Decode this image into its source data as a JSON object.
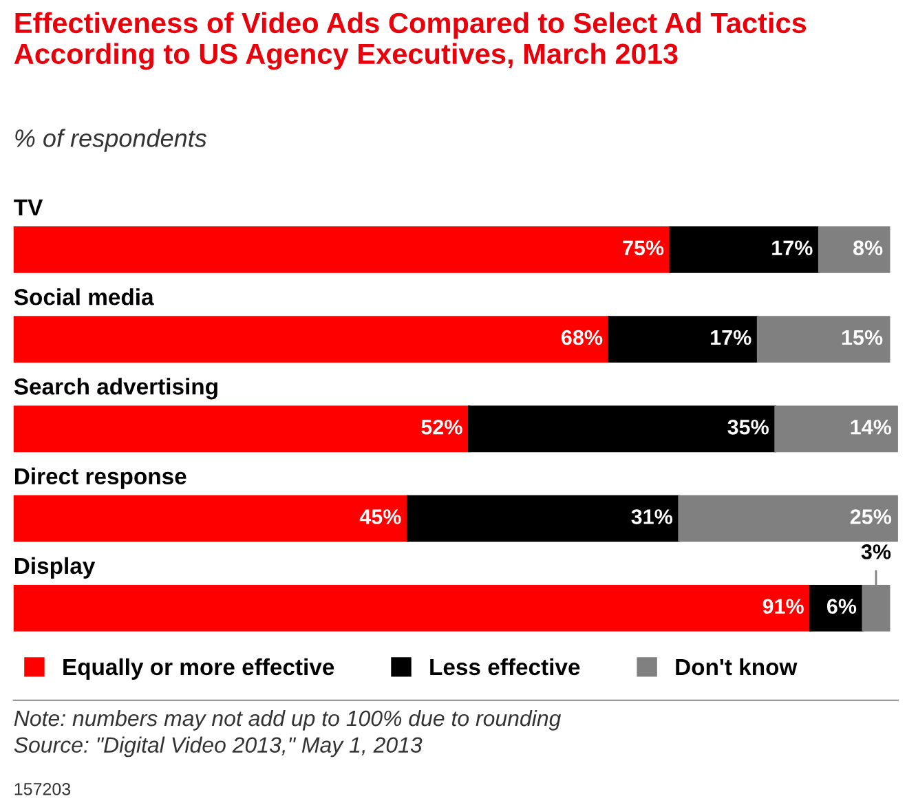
{
  "chart_data": {
    "type": "bar",
    "orientation": "horizontal",
    "stacked": true,
    "title": "Effectiveness of Video Ads Compared to Select Ad Tactics According to US Agency Executives, March 2013",
    "subtitle": "% of respondents",
    "categories": [
      "TV",
      "Social media",
      "Search advertising",
      "Direct response",
      "Display"
    ],
    "series": [
      {
        "name": "Equally or more effective",
        "color": "#ff0000",
        "values": [
          75,
          68,
          52,
          45,
          91
        ],
        "value_labels": [
          "75%",
          "68%",
          "52%",
          "45%",
          "91%"
        ]
      },
      {
        "name": "Less effective",
        "color": "#000000",
        "values": [
          17,
          17,
          35,
          31,
          6
        ],
        "value_labels": [
          "17%",
          "17%",
          "35%",
          "31%",
          "6%"
        ]
      },
      {
        "name": "Don't know",
        "color": "#808080",
        "values": [
          8,
          15,
          14,
          25,
          3
        ],
        "value_labels": [
          "8%",
          "15%",
          "14%",
          "25%",
          "3%"
        ]
      }
    ],
    "legend": "bottom",
    "annotations": [
      "Note: numbers may not add up to 100% due to rounding",
      "Source: \"Digital Video 2013,\" May 1, 2013",
      "157203"
    ]
  }
}
